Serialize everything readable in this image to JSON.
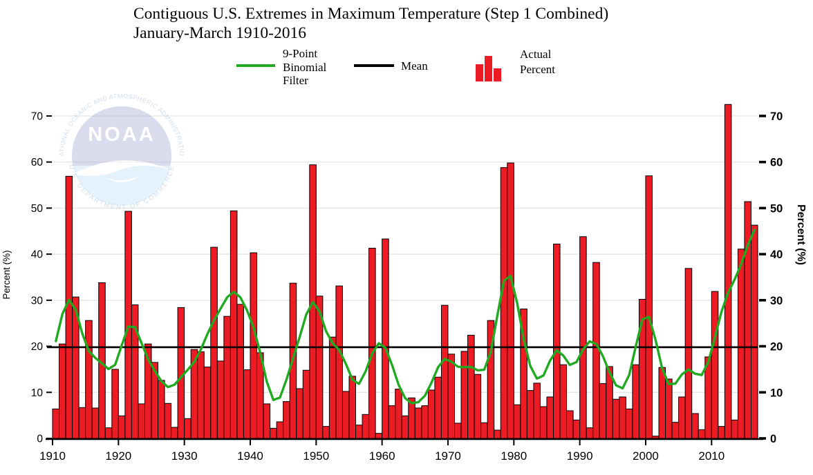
{
  "title": {
    "line1": "Contiguous U.S. Extremes in Maximum Temperature (Step 1 Combined)",
    "line2": "January-March 1910-2016"
  },
  "legend": {
    "filter": {
      "label_lines": [
        "9-Point",
        "Binomial",
        "Filter"
      ],
      "color": "#21aa21"
    },
    "mean": {
      "label": "Mean",
      "color": "#000000"
    },
    "actual": {
      "label_lines": [
        "Actual",
        "Percent"
      ],
      "color": "#ed1c24"
    }
  },
  "watermark": {
    "acronym": "NOAA",
    "org_text_top": "NATIONAL OCEANIC AND ATMOSPHERIC ADMINISTRATION",
    "org_text_bottom": "U.S. DEPARTMENT OF COMMERCE"
  },
  "chart_data": {
    "type": "bar",
    "title": "Contiguous U.S. Extremes in Maximum Temperature (Step 1 Combined), January-March 1910-2016",
    "xlabel": "",
    "ylabel_left": "Percent (%)",
    "ylabel_right": "Percent (%)",
    "x_start": 1910,
    "x_end": 2016,
    "x_ticks": [
      1910,
      1920,
      1930,
      1940,
      1950,
      1960,
      1970,
      1980,
      1990,
      2000,
      2010
    ],
    "y_ticks": [
      0,
      10,
      20,
      30,
      40,
      50,
      60,
      70
    ],
    "ylim": [
      0,
      74
    ],
    "grid": true,
    "legend_position": "top",
    "mean_value": 19.8,
    "colors": {
      "bar": "#ed1c24",
      "bar_edge": "#000000",
      "filter_line": "#21aa21",
      "mean_line": "#000000",
      "grid": "#e3e3e3"
    },
    "series": [
      {
        "name": "Actual Percent",
        "type": "bar",
        "values": [
          6.4,
          20.5,
          56.9,
          30.7,
          6.7,
          25.6,
          6.6,
          33.8,
          2.3,
          15.0,
          4.9,
          49.3,
          29.0,
          7.5,
          20.5,
          16.5,
          12.6,
          7.6,
          2.4,
          28.4,
          4.3,
          19.3,
          18.8,
          15.5,
          41.5,
          16.8,
          26.5,
          49.4,
          29.1,
          14.9,
          40.3,
          18.6,
          7.5,
          2.2,
          3.6,
          8.0,
          33.7,
          10.8,
          14.8,
          59.4,
          30.9,
          2.6,
          22.0,
          33.1,
          10.2,
          13.5,
          2.9,
          5.2,
          41.3,
          1.1,
          43.3,
          7.1,
          10.7,
          4.9,
          8.8,
          6.6,
          7.1,
          10.5,
          13.3,
          28.9,
          18.3,
          3.3,
          18.9,
          22.4,
          13.9,
          3.4,
          25.6,
          1.8,
          58.8,
          59.8,
          7.3,
          28.1,
          10.4,
          12.0,
          6.9,
          9.0,
          42.2,
          16.0,
          6.0,
          4.0,
          43.8,
          2.3,
          38.2,
          11.9,
          15.6,
          8.5,
          9.0,
          6.4,
          16.0,
          30.2,
          57.0,
          0.5,
          15.4,
          12.9,
          3.5,
          9.0,
          36.9,
          5.4,
          1.9,
          17.7,
          31.9,
          2.6,
          72.5,
          4.0,
          41.1,
          51.4,
          46.3
        ]
      },
      {
        "name": "9-Point Binomial Filter",
        "type": "line",
        "derived_from": "Actual Percent",
        "method": "9-point binomial smoothing"
      }
    ]
  }
}
